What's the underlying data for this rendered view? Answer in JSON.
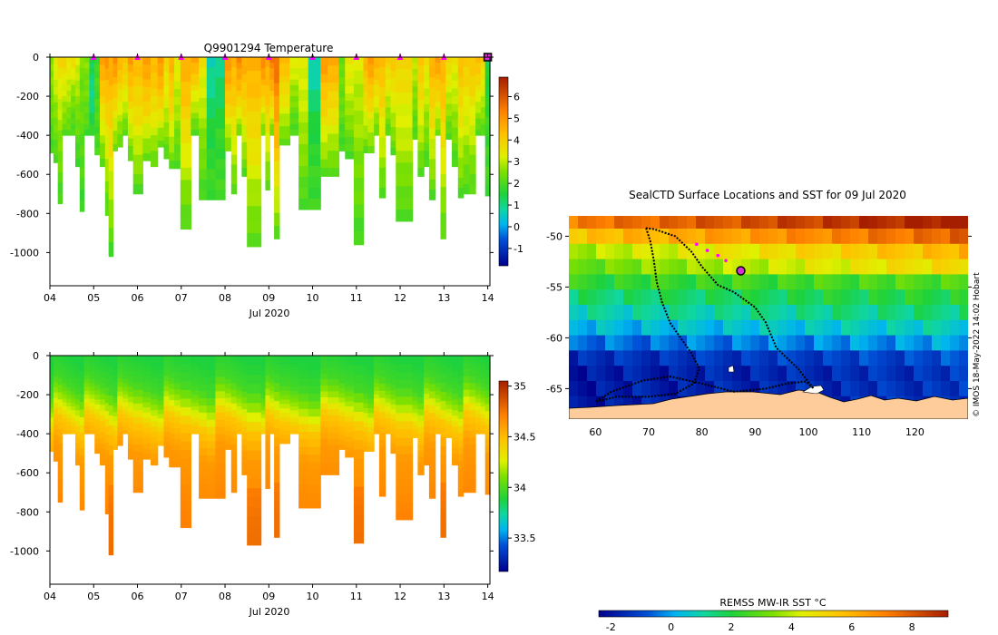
{
  "chart_data": [
    {
      "type": "heatmap",
      "title": "Q9901294  Temperature",
      "xlabel": "Jul 2020",
      "ylabel": "",
      "x_ticks": [
        "04",
        "05",
        "06",
        "07",
        "08",
        "09",
        "10",
        "11",
        "12",
        "13",
        "14"
      ],
      "xlim": [
        4,
        14.05
      ],
      "y_ticks": [
        0,
        -200,
        -400,
        -600,
        -800,
        -1000
      ],
      "ylim": [
        -1170,
        0
      ],
      "colorbar": {
        "ticks": [
          6,
          5,
          4,
          3,
          2,
          1,
          0,
          -1
        ],
        "range": [
          -1.8,
          6.9
        ]
      },
      "surface_markers": [
        5,
        6,
        7,
        8,
        9,
        10,
        11,
        12,
        13
      ],
      "last_profile_marker": 14,
      "profiles": [
        {
          "t": 4.0,
          "w": 0.08,
          "depth": 490,
          "top": 2.7,
          "mid": 2.4,
          "bottom": 1.8
        },
        {
          "t": 4.08,
          "w": 0.1,
          "depth": 540,
          "top": 3.6,
          "mid": 2.6,
          "bottom": 2.0
        },
        {
          "t": 4.18,
          "w": 0.1,
          "depth": 750,
          "top": 3.8,
          "mid": 2.7,
          "bottom": 1.9
        },
        {
          "t": 4.28,
          "w": 0.1,
          "depth": 400,
          "top": 4.0,
          "mid": 3.0,
          "bottom": 2.1
        },
        {
          "t": 4.38,
          "w": 0.1,
          "depth": 400,
          "top": 3.5,
          "mid": 2.9,
          "bottom": 2.0
        },
        {
          "t": 4.48,
          "w": 0.1,
          "depth": 400,
          "top": 3.9,
          "mid": 2.5,
          "bottom": 1.9
        },
        {
          "t": 4.58,
          "w": 0.1,
          "depth": 560,
          "top": 3.3,
          "mid": 2.5,
          "bottom": 1.8
        },
        {
          "t": 4.68,
          "w": 0.1,
          "depth": 790,
          "top": 2.5,
          "mid": 2.2,
          "bottom": 1.8
        },
        {
          "t": 4.78,
          "w": 0.12,
          "depth": 400,
          "top": 2.6,
          "mid": 2.4,
          "bottom": 1.9
        },
        {
          "t": 4.9,
          "w": 0.12,
          "depth": 400,
          "top": 1.4,
          "mid": 0.8,
          "bottom": 1.8
        },
        {
          "t": 5.02,
          "w": 0.12,
          "depth": 500,
          "top": 1.9,
          "mid": 2.0,
          "bottom": 1.9
        },
        {
          "t": 5.14,
          "w": 0.12,
          "depth": 560,
          "top": 4.9,
          "mid": 3.6,
          "bottom": 2.1
        },
        {
          "t": 5.26,
          "w": 0.08,
          "depth": 810,
          "top": 5.0,
          "mid": 3.4,
          "bottom": 2.0
        },
        {
          "t": 5.34,
          "w": 0.1,
          "depth": 1020,
          "top": 4.7,
          "mid": 3.5,
          "bottom": 1.9
        },
        {
          "t": 5.44,
          "w": 0.1,
          "depth": 480,
          "top": 5.2,
          "mid": 3.8,
          "bottom": 2.2
        },
        {
          "t": 5.54,
          "w": 0.12,
          "depth": 460,
          "top": 4.6,
          "mid": 3.4,
          "bottom": 2.1
        },
        {
          "t": 5.66,
          "w": 0.12,
          "depth": 400,
          "top": 4.3,
          "mid": 3.3,
          "bottom": 2.1
        },
        {
          "t": 5.78,
          "w": 0.12,
          "depth": 530,
          "top": 4.9,
          "mid": 3.7,
          "bottom": 2.1
        },
        {
          "t": 5.9,
          "w": 0.22,
          "depth": 700,
          "top": 4.4,
          "mid": 3.5,
          "bottom": 2.0
        },
        {
          "t": 6.12,
          "w": 0.18,
          "depth": 530,
          "top": 4.9,
          "mid": 3.9,
          "bottom": 2.1
        },
        {
          "t": 6.3,
          "w": 0.16,
          "depth": 560,
          "top": 4.5,
          "mid": 3.6,
          "bottom": 2.1
        },
        {
          "t": 6.46,
          "w": 0.14,
          "depth": 460,
          "top": 5.1,
          "mid": 4.0,
          "bottom": 2.2
        },
        {
          "t": 6.6,
          "w": 0.12,
          "depth": 520,
          "top": 3.8,
          "mid": 3.1,
          "bottom": 2.0
        },
        {
          "t": 6.72,
          "w": 0.12,
          "depth": 570,
          "top": 4.6,
          "mid": 3.7,
          "bottom": 2.1
        },
        {
          "t": 6.84,
          "w": 0.14,
          "depth": 570,
          "top": 3.4,
          "mid": 2.8,
          "bottom": 1.9
        },
        {
          "t": 6.98,
          "w": 0.24,
          "depth": 880,
          "top": 4.7,
          "mid": 3.5,
          "bottom": 1.9
        },
        {
          "t": 7.22,
          "w": 0.18,
          "depth": 400,
          "top": 4.9,
          "mid": 3.3,
          "bottom": 2.0
        },
        {
          "t": 7.4,
          "w": 0.18,
          "depth": 730,
          "top": 3.6,
          "mid": 2.7,
          "bottom": 1.9
        },
        {
          "t": 7.58,
          "w": 0.2,
          "depth": 730,
          "top": 0.6,
          "mid": 1.5,
          "bottom": 1.9
        },
        {
          "t": 7.78,
          "w": 0.22,
          "depth": 730,
          "top": 0.8,
          "mid": 1.7,
          "bottom": 1.9
        },
        {
          "t": 8.0,
          "w": 0.14,
          "depth": 480,
          "top": 5.1,
          "mid": 4.0,
          "bottom": 2.2
        },
        {
          "t": 8.14,
          "w": 0.12,
          "depth": 700,
          "top": 4.6,
          "mid": 3.6,
          "bottom": 2.1
        },
        {
          "t": 8.26,
          "w": 0.12,
          "depth": 400,
          "top": 5.3,
          "mid": 4.1,
          "bottom": 2.2
        },
        {
          "t": 8.38,
          "w": 0.12,
          "depth": 610,
          "top": 4.7,
          "mid": 3.6,
          "bottom": 2.0
        },
        {
          "t": 8.5,
          "w": 0.32,
          "depth": 970,
          "top": 4.6,
          "mid": 3.5,
          "bottom": 2.0
        },
        {
          "t": 8.82,
          "w": 0.1,
          "depth": 400,
          "top": 5.4,
          "mid": 4.0,
          "bottom": 2.2
        },
        {
          "t": 8.92,
          "w": 0.1,
          "depth": 680,
          "top": 4.8,
          "mid": 3.7,
          "bottom": 2.1
        },
        {
          "t": 9.02,
          "w": 0.1,
          "depth": 400,
          "top": 5.5,
          "mid": 4.2,
          "bottom": 2.2
        },
        {
          "t": 9.12,
          "w": 0.12,
          "depth": 930,
          "top": 5.7,
          "mid": 4.2,
          "bottom": 2.1
        },
        {
          "t": 9.24,
          "w": 0.24,
          "depth": 450,
          "top": 4.4,
          "mid": 3.5,
          "bottom": 2.1
        },
        {
          "t": 9.48,
          "w": 0.2,
          "depth": 400,
          "top": 3.5,
          "mid": 2.6,
          "bottom": 1.9
        },
        {
          "t": 9.68,
          "w": 0.22,
          "depth": 780,
          "top": 3.4,
          "mid": 2.8,
          "bottom": 1.9
        },
        {
          "t": 9.9,
          "w": 0.28,
          "depth": 780,
          "top": 0.5,
          "mid": 1.6,
          "bottom": 1.9
        },
        {
          "t": 10.18,
          "w": 0.16,
          "depth": 610,
          "top": 5.0,
          "mid": 3.7,
          "bottom": 2.1
        },
        {
          "t": 10.34,
          "w": 0.26,
          "depth": 610,
          "top": 4.7,
          "mid": 3.5,
          "bottom": 2.0
        },
        {
          "t": 10.6,
          "w": 0.14,
          "depth": 480,
          "top": 2.3,
          "mid": 2.3,
          "bottom": 1.8
        },
        {
          "t": 10.74,
          "w": 0.2,
          "depth": 520,
          "top": 3.6,
          "mid": 2.8,
          "bottom": 1.9
        },
        {
          "t": 10.94,
          "w": 0.22,
          "depth": 960,
          "top": 3.2,
          "mid": 2.6,
          "bottom": 1.9
        },
        {
          "t": 11.16,
          "w": 0.1,
          "depth": 490,
          "top": 4.6,
          "mid": 3.6,
          "bottom": 2.1
        },
        {
          "t": 11.26,
          "w": 0.14,
          "depth": 490,
          "top": 5.0,
          "mid": 3.8,
          "bottom": 2.2
        },
        {
          "t": 11.4,
          "w": 0.12,
          "depth": 400,
          "top": 4.7,
          "mid": 3.5,
          "bottom": 2.1
        },
        {
          "t": 11.52,
          "w": 0.14,
          "depth": 720,
          "top": 4.5,
          "mid": 3.4,
          "bottom": 2.0
        },
        {
          "t": 11.66,
          "w": 0.12,
          "depth": 400,
          "top": 4.0,
          "mid": 3.1,
          "bottom": 2.0
        },
        {
          "t": 11.78,
          "w": 0.12,
          "depth": 500,
          "top": 4.2,
          "mid": 3.2,
          "bottom": 2.0
        },
        {
          "t": 11.9,
          "w": 0.38,
          "depth": 840,
          "top": 3.9,
          "mid": 3.0,
          "bottom": 1.9
        },
        {
          "t": 12.28,
          "w": 0.12,
          "depth": 420,
          "top": 3.1,
          "mid": 2.5,
          "bottom": 1.9
        },
        {
          "t": 12.4,
          "w": 0.14,
          "depth": 610,
          "top": 4.3,
          "mid": 3.3,
          "bottom": 2.0
        },
        {
          "t": 12.54,
          "w": 0.12,
          "depth": 560,
          "top": 3.6,
          "mid": 2.8,
          "bottom": 1.9
        },
        {
          "t": 12.66,
          "w": 0.14,
          "depth": 730,
          "top": 4.6,
          "mid": 3.5,
          "bottom": 2.0
        },
        {
          "t": 12.8,
          "w": 0.12,
          "depth": 400,
          "top": 5.0,
          "mid": 3.8,
          "bottom": 2.2
        },
        {
          "t": 12.92,
          "w": 0.12,
          "depth": 930,
          "top": 4.6,
          "mid": 3.5,
          "bottom": 2.0
        },
        {
          "t": 13.04,
          "w": 0.14,
          "depth": 420,
          "top": 3.9,
          "mid": 3.0,
          "bottom": 2.0
        },
        {
          "t": 13.18,
          "w": 0.14,
          "depth": 560,
          "top": 3.5,
          "mid": 2.8,
          "bottom": 1.9
        },
        {
          "t": 13.32,
          "w": 0.12,
          "depth": 720,
          "top": 4.4,
          "mid": 3.4,
          "bottom": 2.0
        },
        {
          "t": 13.44,
          "w": 0.14,
          "depth": 700,
          "top": 4.1,
          "mid": 3.1,
          "bottom": 1.9
        },
        {
          "t": 13.58,
          "w": 0.14,
          "depth": 700,
          "top": 4.3,
          "mid": 3.2,
          "bottom": 2.0
        },
        {
          "t": 13.72,
          "w": 0.12,
          "depth": 400,
          "top": 4.5,
          "mid": 3.3,
          "bottom": 2.0
        },
        {
          "t": 13.84,
          "w": 0.1,
          "depth": 400,
          "top": 4.0,
          "mid": 3.1,
          "bottom": 2.0
        },
        {
          "t": 13.94,
          "w": 0.11,
          "depth": 710,
          "top": 1.3,
          "mid": 1.8,
          "bottom": 1.9
        }
      ]
    },
    {
      "type": "heatmap",
      "title": "",
      "xlabel": "Jul 2020",
      "ylabel": "",
      "x_ticks": [
        "04",
        "05",
        "06",
        "07",
        "08",
        "09",
        "10",
        "11",
        "12",
        "13",
        "14"
      ],
      "xlim": [
        4,
        14.05
      ],
      "y_ticks": [
        0,
        -200,
        -400,
        -600,
        -800,
        -1000
      ],
      "ylim": [
        -1170,
        0
      ],
      "colorbar": {
        "ticks": [
          35,
          34.5,
          34,
          33.5
        ],
        "range": [
          33.17,
          35.05
        ]
      },
      "salinity_profile": {
        "surface": 33.88,
        "at_150m": 33.97,
        "at_250m": 34.18,
        "at_350m": 34.46,
        "at_500m": 34.62,
        "at_800m": 34.7,
        "at_1000m": 34.72
      }
    },
    {
      "type": "map",
      "title": "SealCTD Surface Locations and SST for 09 Jul 2020",
      "x_ticks": [
        "60",
        "70",
        "80",
        "90",
        "100",
        "110",
        "120"
      ],
      "xlim": [
        55,
        130
      ],
      "y_ticks": [
        "-50",
        "-55",
        "-60",
        "-65"
      ],
      "ylim": [
        -68,
        -48
      ],
      "colorbar_label": "REMSS MW-IR SST °C",
      "colorbar_ticks": [
        "-2",
        "0",
        "2",
        "4",
        "6",
        "8"
      ],
      "colorbar_range": [
        -2.4,
        9.2
      ],
      "sst_bands": [
        {
          "lat": -48.5,
          "sst": 7.2
        },
        {
          "lat": -50.0,
          "sst": 5.6
        },
        {
          "lat": -51.5,
          "sst": 3.8
        },
        {
          "lat": -53.0,
          "sst": 3.0
        },
        {
          "lat": -54.5,
          "sst": 2.2
        },
        {
          "lat": -56.0,
          "sst": 1.5
        },
        {
          "lat": -57.5,
          "sst": 0.9
        },
        {
          "lat": -59.0,
          "sst": 0.2
        },
        {
          "lat": -60.5,
          "sst": -0.6
        },
        {
          "lat": -62.0,
          "sst": -1.5
        },
        {
          "lat": -63.5,
          "sst": -1.9
        },
        {
          "lat": -65.0,
          "sst": -1.9
        },
        {
          "lat": -66.5,
          "sst": -1.9
        }
      ],
      "track": [
        [
          69.5,
          -49.2
        ],
        [
          70.3,
          -50.5
        ],
        [
          71.0,
          -52.5
        ],
        [
          71.5,
          -54.5
        ],
        [
          72.5,
          -56.5
        ],
        [
          74.0,
          -58.5
        ],
        [
          76.0,
          -60.0
        ],
        [
          78.0,
          -61.5
        ],
        [
          79.5,
          -63.0
        ],
        [
          78.5,
          -64.5
        ],
        [
          75.0,
          -65.5
        ],
        [
          70.0,
          -65.8
        ],
        [
          64.0,
          -65.8
        ],
        [
          60.0,
          -66.3
        ],
        [
          63.0,
          -65.3
        ],
        [
          69.0,
          -64.2
        ],
        [
          74.0,
          -63.8
        ],
        [
          80.0,
          -64.5
        ],
        [
          86.0,
          -65.3
        ],
        [
          92.0,
          -65.0
        ],
        [
          96.0,
          -64.5
        ],
        [
          99.5,
          -64.3
        ],
        [
          101.0,
          -65.0
        ],
        [
          98.0,
          -63.0
        ],
        [
          94.0,
          -61.0
        ],
        [
          92.0,
          -58.5
        ],
        [
          90.0,
          -57.0
        ],
        [
          86.0,
          -55.5
        ],
        [
          83.0,
          -54.8
        ],
        [
          80.0,
          -53.0
        ],
        [
          78.0,
          -51.5
        ],
        [
          75.0,
          -50.0
        ],
        [
          71.0,
          -49.3
        ],
        [
          69.5,
          -49.2
        ]
      ],
      "recent_positions": [
        [
          79.0,
          -50.8
        ],
        [
          81.0,
          -51.4
        ],
        [
          83.0,
          -51.9
        ],
        [
          84.5,
          -52.4
        ]
      ],
      "latest_position": [
        87.3,
        -53.4
      ],
      "land_color": "#fdcc9a"
    }
  ],
  "credit": "© IMOS 18-May-2022 14:02 Hobart"
}
